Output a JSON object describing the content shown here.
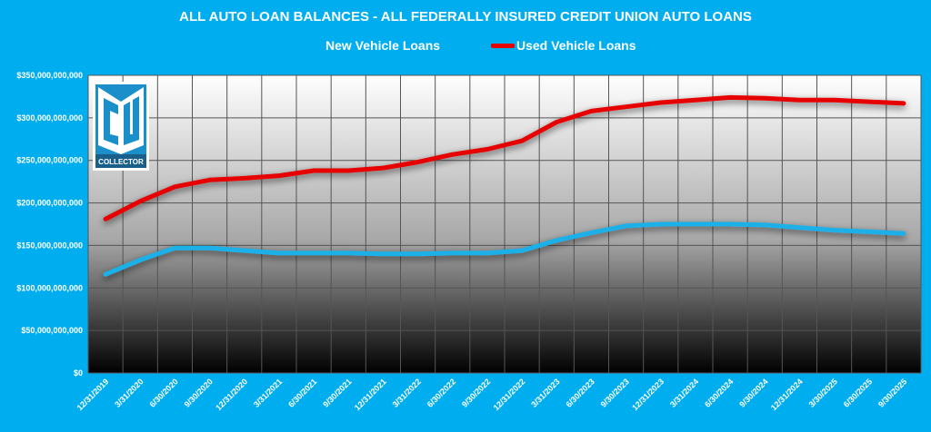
{
  "colors": {
    "background": "#00aeef",
    "new": "#1ab0e8",
    "used": "#e60000"
  },
  "logo": {
    "text": "CU COLLECTOR"
  },
  "chart_data": {
    "type": "line",
    "title": "ALL AUTO LOAN BALANCES - ALL FEDERALLY INSURED CREDIT UNION AUTO LOANS",
    "xlabel": "",
    "ylabel": "",
    "ylim": [
      0,
      350000000000
    ],
    "yticks": [
      "$0",
      "$50,000,000,000",
      "$100,000,000,000",
      "$150,000,000,000",
      "$200,000,000,000",
      "$250,000,000,000",
      "$300,000,000,000",
      "$350,000,000,000"
    ],
    "grid": true,
    "legend": "top",
    "categories": [
      "12/31/2019",
      "3/31/2020",
      "6/30/2020",
      "9/30/2020",
      "12/31/2020",
      "3/31/2021",
      "6/30/2021",
      "9/30/2021",
      "12/31/2021",
      "3/31/2022",
      "6/30/2022",
      "9/30/2022",
      "12/31/2022",
      "3/31/2023",
      "6/30/2023",
      "9/30/2023",
      "12/31/2023",
      "3/31/2024",
      "6/30/2024",
      "9/30/2024",
      "12/31/2024",
      "3/30/2025",
      "6/30/2025",
      "9/30/2025"
    ],
    "series": [
      {
        "name": "New Vehicle Loans",
        "color": "#1ab0e8",
        "values": [
          116000000000.0,
          133000000000.0,
          147000000000.0,
          147000000000.0,
          144000000000.0,
          141000000000.0,
          141000000000.0,
          141000000000.0,
          140000000000.0,
          140000000000.0,
          141000000000.0,
          141000000000.0,
          144000000000.0,
          156000000000.0,
          165000000000.0,
          173000000000.0,
          175000000000.0,
          175000000000.0,
          175000000000.0,
          174000000000.0,
          171000000000.0,
          168000000000.0,
          166000000000.0,
          164000000000.0
        ]
      },
      {
        "name": "Used Vehicle Loans",
        "color": "#e60000",
        "values": [
          181000000000.0,
          202000000000.0,
          219000000000.0,
          227000000000.0,
          229000000000.0,
          232000000000.0,
          238000000000.0,
          238000000000.0,
          241000000000.0,
          248000000000.0,
          257000000000.0,
          263000000000.0,
          273000000000.0,
          295000000000.0,
          308000000000.0,
          313000000000.0,
          318000000000.0,
          321000000000.0,
          324000000000.0,
          323000000000.0,
          321000000000.0,
          321000000000.0,
          319000000000.0,
          317000000000.0
        ]
      }
    ]
  }
}
